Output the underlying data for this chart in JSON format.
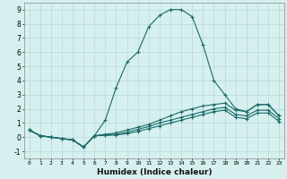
{
  "xlabel": "Humidex (Indice chaleur)",
  "background_color": "#d6f0ef",
  "grid_color": "#b8d8d4",
  "line_color": "#1a6b6a",
  "xlim": [
    -0.5,
    23.5
  ],
  "ylim": [
    -1.5,
    9.5
  ],
  "xticks": [
    0,
    1,
    2,
    3,
    4,
    5,
    6,
    7,
    8,
    9,
    10,
    11,
    12,
    13,
    14,
    15,
    16,
    17,
    18,
    19,
    20,
    21,
    22,
    23
  ],
  "yticks": [
    -1,
    0,
    1,
    2,
    3,
    4,
    5,
    6,
    7,
    8,
    9
  ],
  "series": [
    [
      0.5,
      0.1,
      0.0,
      -0.1,
      -0.2,
      -0.7,
      0.1,
      1.2,
      3.5,
      5.3,
      6.0,
      7.8,
      8.6,
      9.0,
      9.0,
      8.5,
      6.5,
      4.0,
      3.0,
      2.0,
      1.8,
      2.3,
      2.3,
      1.5
    ],
    [
      0.5,
      0.1,
      0.0,
      -0.1,
      -0.2,
      -0.7,
      0.1,
      0.2,
      0.3,
      0.5,
      0.7,
      0.9,
      1.2,
      1.5,
      1.8,
      2.0,
      2.2,
      2.3,
      2.4,
      1.9,
      1.8,
      2.3,
      2.3,
      1.5
    ],
    [
      0.5,
      0.1,
      0.0,
      -0.1,
      -0.2,
      -0.7,
      0.1,
      0.15,
      0.2,
      0.35,
      0.55,
      0.75,
      1.0,
      1.2,
      1.4,
      1.6,
      1.8,
      2.0,
      2.1,
      1.6,
      1.5,
      1.9,
      1.9,
      1.3
    ],
    [
      0.5,
      0.1,
      0.0,
      -0.1,
      -0.2,
      -0.7,
      0.1,
      0.12,
      0.15,
      0.25,
      0.4,
      0.6,
      0.8,
      1.0,
      1.2,
      1.4,
      1.6,
      1.8,
      1.9,
      1.4,
      1.3,
      1.7,
      1.7,
      1.1
    ]
  ]
}
